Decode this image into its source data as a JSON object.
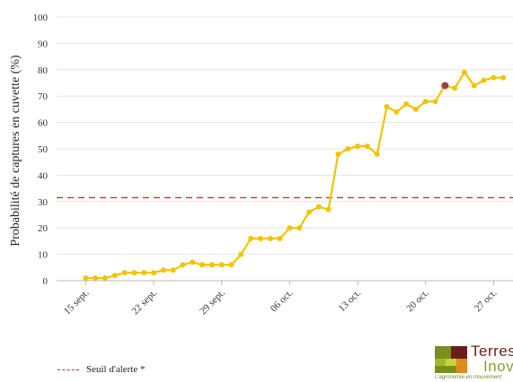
{
  "chart_data": {
    "type": "line",
    "title": "",
    "xlabel": "",
    "ylabel": "Probabilité de captures en cuvette (%)",
    "ylim": [
      0,
      100
    ],
    "yticks": [
      0,
      10,
      20,
      30,
      40,
      50,
      60,
      70,
      80,
      90,
      100
    ],
    "grid": true,
    "x_tick_labels": [
      "15 sept.",
      "22 sept.",
      "29 sept.",
      "06 oct.",
      "13 oct.",
      "20 oct.",
      "27 oct."
    ],
    "series": [
      {
        "name": "",
        "color": "#f2c400",
        "x": [
          "2023-09-15",
          "2023-09-16",
          "2023-09-17",
          "2023-09-18",
          "2023-09-19",
          "2023-09-20",
          "2023-09-21",
          "2023-09-22",
          "2023-09-23",
          "2023-09-24",
          "2023-09-25",
          "2023-09-26",
          "2023-09-27",
          "2023-09-28",
          "2023-09-29",
          "2023-09-30",
          "2023-10-01",
          "2023-10-02",
          "2023-10-03",
          "2023-10-04",
          "2023-10-05",
          "2023-10-06",
          "2023-10-07",
          "2023-10-08",
          "2023-10-09",
          "2023-10-10",
          "2023-10-11",
          "2023-10-12",
          "2023-10-13",
          "2023-10-14",
          "2023-10-15",
          "2023-10-16",
          "2023-10-17",
          "2023-10-18",
          "2023-10-19",
          "2023-10-20",
          "2023-10-21",
          "2023-10-22",
          "2023-10-23",
          "2023-10-24",
          "2023-10-25",
          "2023-10-26",
          "2023-10-27",
          "2023-10-28"
        ],
        "values": [
          1,
          1,
          1,
          2,
          3,
          3,
          3,
          3,
          4,
          4,
          6,
          7,
          6,
          6,
          6,
          6,
          10,
          16,
          16,
          16,
          16,
          20,
          20,
          26,
          28,
          27,
          48,
          50,
          51,
          51,
          48,
          66,
          64,
          67,
          65,
          68,
          68,
          74,
          73,
          79,
          74,
          76,
          77,
          77
        ],
        "highlight": {
          "x": "2023-10-22",
          "value": 74,
          "color": "#a0413a"
        }
      }
    ],
    "reference_line": {
      "label": "Seuil d'alerte *",
      "value": 31.5,
      "color": "#c0392b",
      "style": "dashed"
    },
    "legend": {
      "position": "bottom-left",
      "items": [
        {
          "label": "Seuil d'alerte *",
          "color": "#c0392b",
          "style": "dashed"
        }
      ]
    }
  },
  "logo": {
    "name_line1": "Terres",
    "name_line2": "Inov",
    "tagline": "L'agronomie en mouvement",
    "colors": [
      "#7a8f1e",
      "#6b1f1a",
      "#a6b82a",
      "#e08a1e",
      "#c9d13a",
      "#8a2a22"
    ]
  }
}
